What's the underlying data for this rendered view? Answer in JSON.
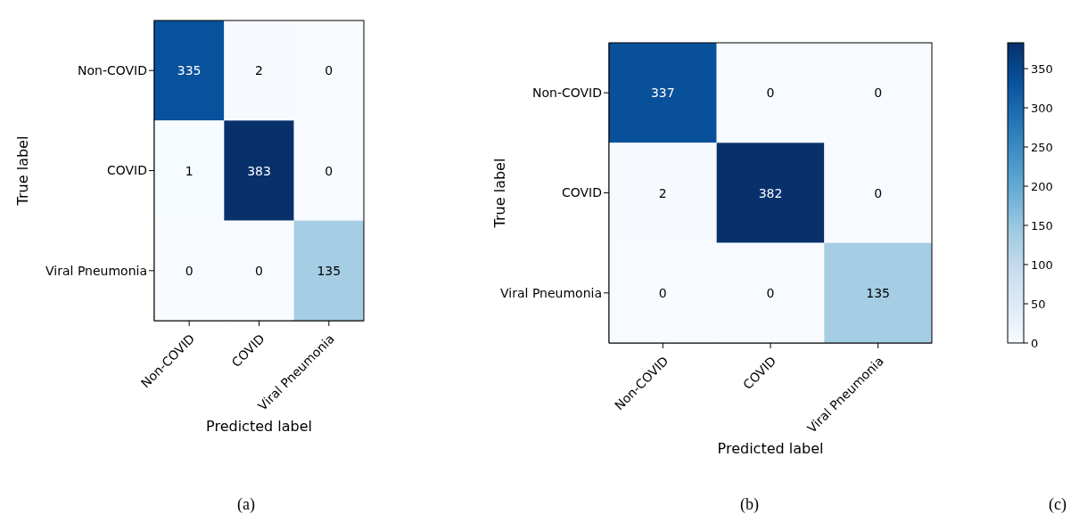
{
  "chart_data": [
    {
      "type": "heatmap",
      "categories": [
        "Non-COVID",
        "COVID",
        "Viral Pneumonia"
      ],
      "y_categories": [
        "Non-COVID",
        "COVID",
        "Viral Pneumonia"
      ],
      "cells": [
        [
          335,
          2,
          0
        ],
        [
          1,
          383,
          0
        ],
        [
          0,
          0,
          135
        ]
      ],
      "xlabel": "Predicted label",
      "ylabel": "True label",
      "data_labels": true,
      "annotations": [
        "(a)"
      ]
    },
    {
      "type": "heatmap",
      "categories": [
        "Non-COVID",
        "COVID",
        "Viral Pneumonia"
      ],
      "y_categories": [
        "Non-COVID",
        "COVID",
        "Viral Pneumonia"
      ],
      "cells": [
        [
          337,
          0,
          0
        ],
        [
          2,
          382,
          0
        ],
        [
          0,
          0,
          135
        ]
      ],
      "xlabel": "Predicted label",
      "ylabel": "True label",
      "clim": [
        0,
        383
      ],
      "cticks": [
        0,
        50,
        100,
        150,
        200,
        250,
        300,
        350
      ],
      "data_labels": true,
      "annotations": [
        "(b)",
        "(c)"
      ]
    }
  ]
}
